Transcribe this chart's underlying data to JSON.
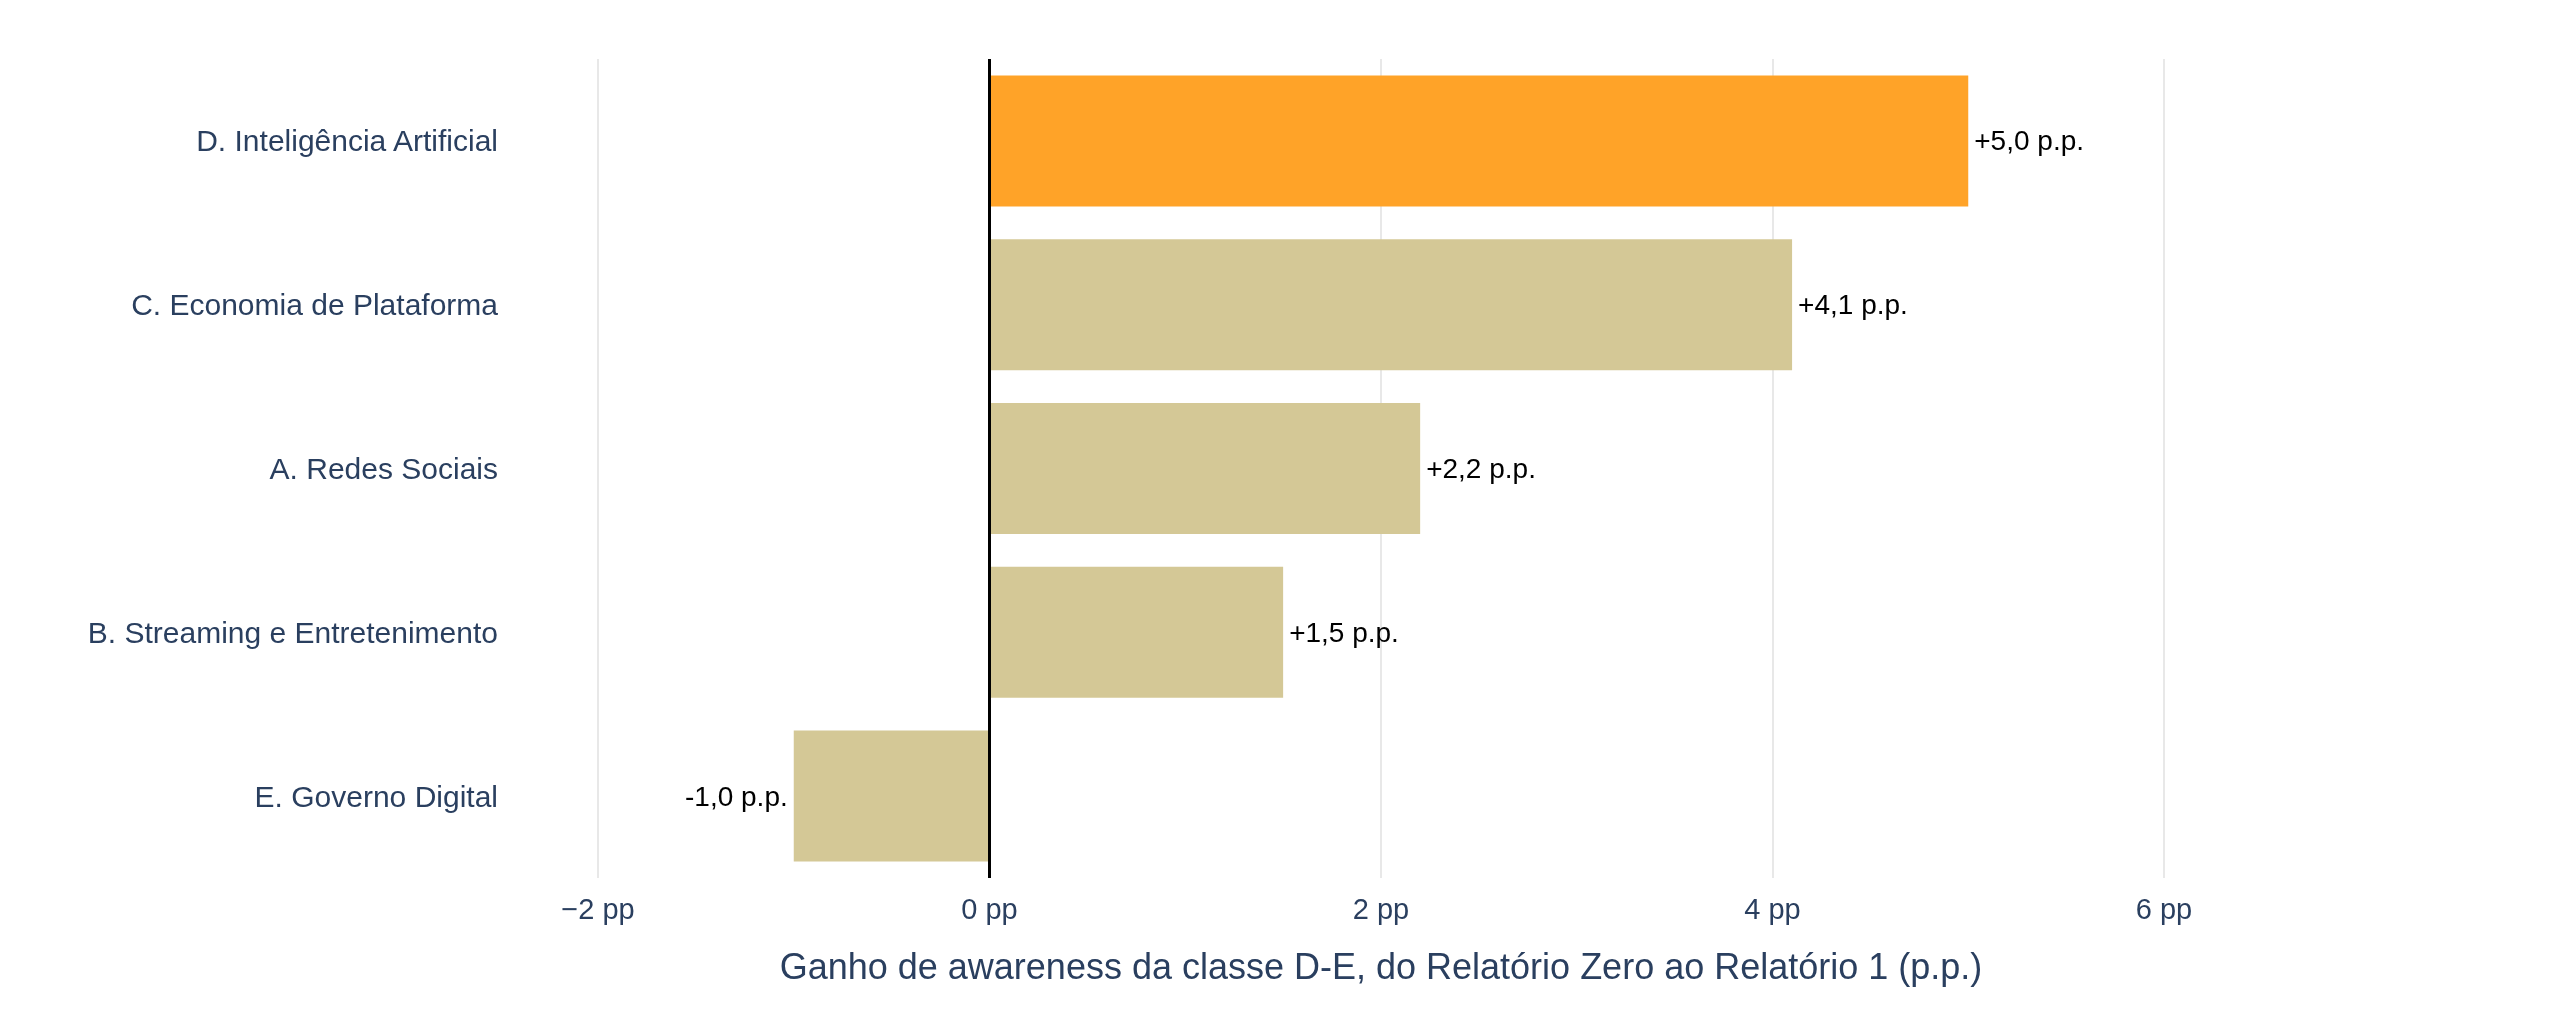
{
  "chart_data": {
    "type": "bar",
    "orientation": "horizontal",
    "xlabel": "Ganho de awareness da classe D-E, do Relatório Zero ao Relatório 1 (p.p.)",
    "categories": [
      "D. Inteligência Artificial",
      "C. Economia de Plataforma",
      "A. Redes Sociais",
      "B. Streaming e Entretenimento",
      "E. Governo Digital"
    ],
    "values": [
      5.0,
      4.1,
      2.2,
      1.5,
      -1.0
    ],
    "colors": [
      "#ffa328",
      "#d4c896",
      "#d4c896",
      "#d4c896",
      "#d4c896"
    ],
    "value_labels": [
      "+5,0 p.p.",
      "+4,1 p.p.",
      "+2,2 p.p.",
      "+1,5 p.p.",
      "-1,0 p.p."
    ],
    "xlim": [
      -2,
      6
    ],
    "xticks": [
      {
        "value": -2,
        "label": "−2 pp"
      },
      {
        "value": 0,
        "label": "0 pp"
      },
      {
        "value": 2,
        "label": "2 pp"
      },
      {
        "value": 4,
        "label": "4 pp"
      },
      {
        "value": 6,
        "label": "6 pp"
      }
    ],
    "grid": "x",
    "ref_lines": [
      {
        "axis": "x",
        "value": 0,
        "color": "#000000"
      }
    ]
  }
}
